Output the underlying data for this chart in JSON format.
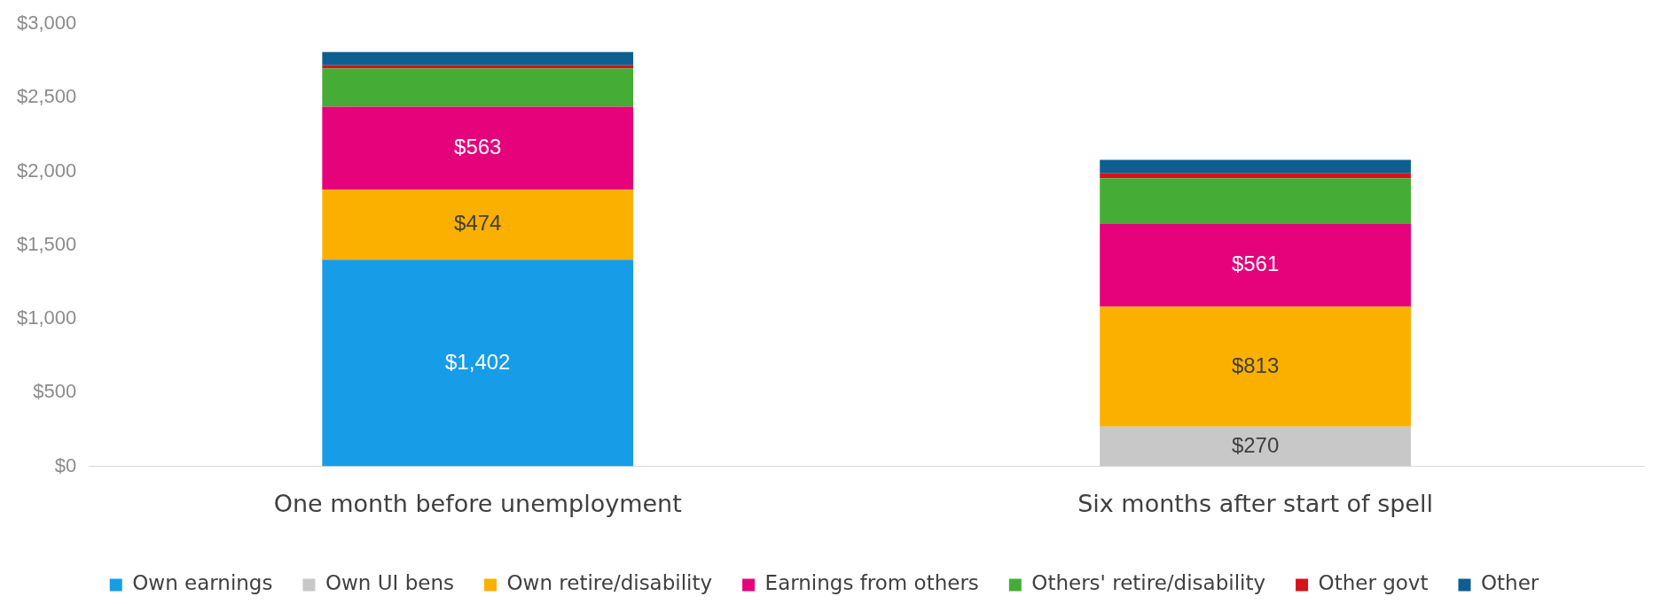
{
  "chart_data": {
    "type": "bar",
    "stacked": true,
    "categories": [
      "One month before unemployment",
      "Six months after start of spell"
    ],
    "series": [
      {
        "name": "Own earnings",
        "color": "#179de8",
        "values": [
          1402,
          0
        ],
        "value_labels": [
          "$1,402",
          null
        ]
      },
      {
        "name": "Own UI bens",
        "color": "#c8c8c8",
        "values": [
          0,
          270
        ],
        "value_labels": [
          null,
          "$270"
        ]
      },
      {
        "name": "Own retire/disability",
        "color": "#fbb000",
        "values": [
          474,
          813
        ],
        "value_labels": [
          "$474",
          "$813"
        ]
      },
      {
        "name": "Earnings from others",
        "color": "#e5027a",
        "values": [
          563,
          561
        ],
        "value_labels": [
          "$563",
          "$561"
        ]
      },
      {
        "name": "Others' retire/disability",
        "color": "#45ad35",
        "values": [
          261,
          310
        ]
      },
      {
        "name": "Other govt",
        "color": "#d3141b",
        "values": [
          21,
          34
        ]
      },
      {
        "name": "Other",
        "color": "#0e5f8f",
        "values": [
          90,
          91
        ]
      }
    ],
    "ylim": [
      0,
      3000
    ],
    "yticks": [
      {
        "value": 0,
        "label": "$0"
      },
      {
        "value": 500,
        "label": "$500"
      },
      {
        "value": 1000,
        "label": "$1,000"
      },
      {
        "value": 1500,
        "label": "$1,500"
      },
      {
        "value": 2000,
        "label": "$2,000"
      },
      {
        "value": 2500,
        "label": "$2,500"
      },
      {
        "value": 3000,
        "label": "$3,000"
      }
    ],
    "grid": false,
    "legend": "bottom"
  }
}
